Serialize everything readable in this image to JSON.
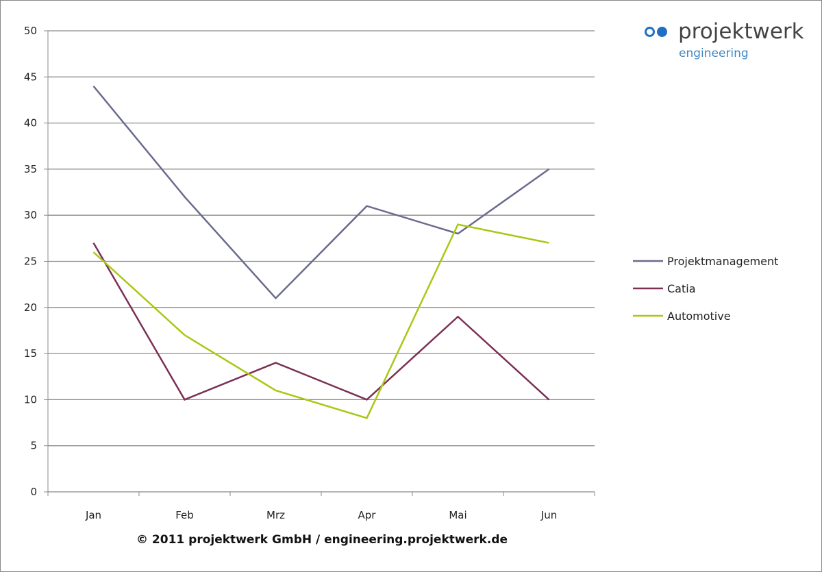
{
  "chart_data": {
    "type": "line",
    "categories": [
      "Jan",
      "Feb",
      "Mrz",
      "Apr",
      "Mai",
      "Jun"
    ],
    "series": [
      {
        "name": "Projektmanagement",
        "values": [
          44,
          32,
          21,
          31,
          28,
          35
        ],
        "color": "#6a6a8e"
      },
      {
        "name": "Catia",
        "values": [
          27,
          10,
          14,
          10,
          19,
          10
        ],
        "color": "#7b2f55"
      },
      {
        "name": "Automotive",
        "values": [
          26,
          17,
          11,
          8,
          29,
          27
        ],
        "color": "#a8c814"
      }
    ],
    "ylim": [
      0,
      50
    ],
    "yticks": [
      0,
      5,
      10,
      15,
      20,
      25,
      30,
      35,
      40,
      45,
      50
    ],
    "grid": true,
    "legend": "right",
    "title": "",
    "xlabel": "",
    "ylabel": ""
  },
  "logo": {
    "name": "projektwerk",
    "sub": "engineering"
  },
  "footer": "© 2011 projektwerk GmbH / engineering.projektwerk.de"
}
